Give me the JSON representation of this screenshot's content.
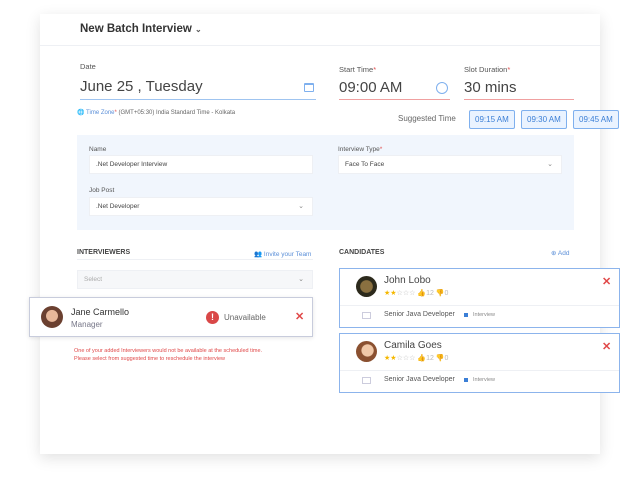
{
  "header": {
    "title": "New Batch Interview"
  },
  "date": {
    "label": "Date",
    "value": "June 25 , Tuesday",
    "timezone_label": "Time Zone",
    "timezone_value": "(GMT+05:30) India Standard Time - Kolkata"
  },
  "start_time": {
    "label": "Start Time",
    "value": "09:00 AM"
  },
  "slot_duration": {
    "label": "Slot Duration",
    "value": "30 mins"
  },
  "suggested": {
    "label": "Suggested Time",
    "times": [
      "09:15 AM",
      "09:30 AM",
      "09:45 AM"
    ]
  },
  "form": {
    "name_label": "Name",
    "name_value": ".Net Developer Interview",
    "type_label": "Interview Type",
    "type_value": "Face To Face",
    "job_label": "Job Post",
    "job_value": ".Net Developer"
  },
  "interviewers": {
    "title": "INTERVIEWERS",
    "invite": "Invite your Team",
    "select_placeholder": "Select",
    "items": [
      {
        "name": "Jane Carmello",
        "role": "Manager",
        "status": "Unavailable"
      }
    ],
    "error": [
      "One of your added Interviewers would not be available at the scheduled time.",
      "Please select from suggested time to reschedule the interview"
    ]
  },
  "candidates": {
    "title": "CANDIDATES",
    "add": "Add",
    "items": [
      {
        "name": "John Lobo",
        "rating": 2,
        "likes": "12",
        "dislikes": "0",
        "position": "Senior Java Developer",
        "stage": "Interview"
      },
      {
        "name": "Camila Goes",
        "rating": 2,
        "likes": "12",
        "dislikes": "0",
        "position": "Senior Java Developer",
        "stage": "Interview"
      }
    ]
  },
  "colors": {
    "accent": "#3b7fd6",
    "error": "#e04848",
    "star": "#f5b800",
    "panel": "#f1f6fd"
  }
}
